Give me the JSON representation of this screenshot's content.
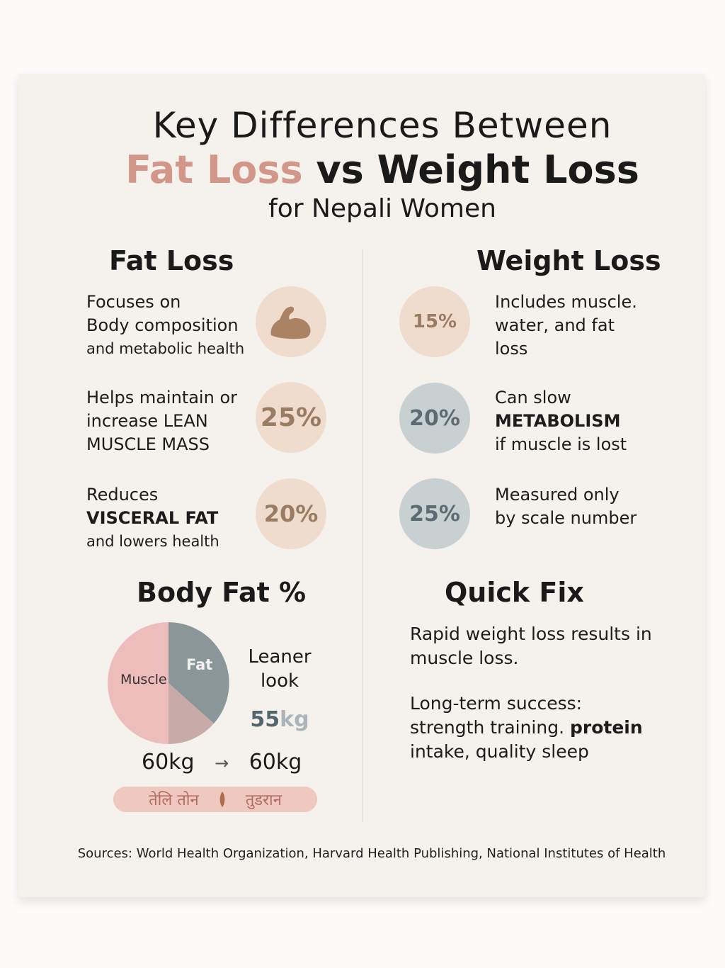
{
  "title": {
    "line1": "Key Differences Between",
    "accent": "Fat Loss",
    "rest": " vs Weight Loss",
    "line3": "for Nepali Women"
  },
  "fat_loss": {
    "heading": "Fat Loss",
    "items": [
      {
        "lines": [
          "Focuses on",
          "Body composition",
          "and metabolic health"
        ],
        "badge_icon": "flexed-arm-icon",
        "badge": ""
      },
      {
        "lines": [
          "Helps maintain or",
          "increase LEAN",
          "MUSCLE MASS"
        ],
        "badge": "25%"
      },
      {
        "lines": [
          "Reduces",
          "VISCERAL FAT",
          "and lowers health"
        ],
        "badge": "20%"
      }
    ]
  },
  "weight_loss": {
    "heading": "Weight Loss",
    "items": [
      {
        "badge": "15%",
        "lines": [
          "Includes muscle.",
          "water, and fat",
          "loss"
        ]
      },
      {
        "badge": "20%",
        "lines": [
          "Can slow",
          "METABOLISM",
          "if muscle is lost"
        ]
      },
      {
        "badge": "25%",
        "lines": [
          "Measured only",
          "by scale number"
        ]
      }
    ]
  },
  "body_fat": {
    "heading": "Body Fat %",
    "pie_labels": {
      "muscle": "Muscle",
      "fat": "Fat"
    },
    "side_label": [
      "Leaner",
      "look"
    ],
    "weight_num": "55",
    "weight_unit": "kg",
    "before": "60kg",
    "arrow": "→",
    "after": "60kg",
    "pill_left": "तेलि तोन",
    "pill_right": "तुडरान"
  },
  "quick_fix": {
    "heading": "Quick Fix",
    "para1": [
      "Rapid weight loss results in",
      "muscle loss."
    ],
    "para2_line1": "Long-term success:",
    "para2_line2_a": "strength training. ",
    "para2_line2_b": "protein",
    "para2_line3": "intake, quality sleep"
  },
  "sources": "Sources: World Health Organization, Harvard Health Publishing, National Institutes of Health",
  "colors": {
    "accent": "#d3978a",
    "peach_circle": "#f0dccc",
    "blue_circle": "#c9d0d2",
    "muscle": "#ecbdbb",
    "fat": "#8a9697",
    "mixed": "#c8aaa9"
  }
}
